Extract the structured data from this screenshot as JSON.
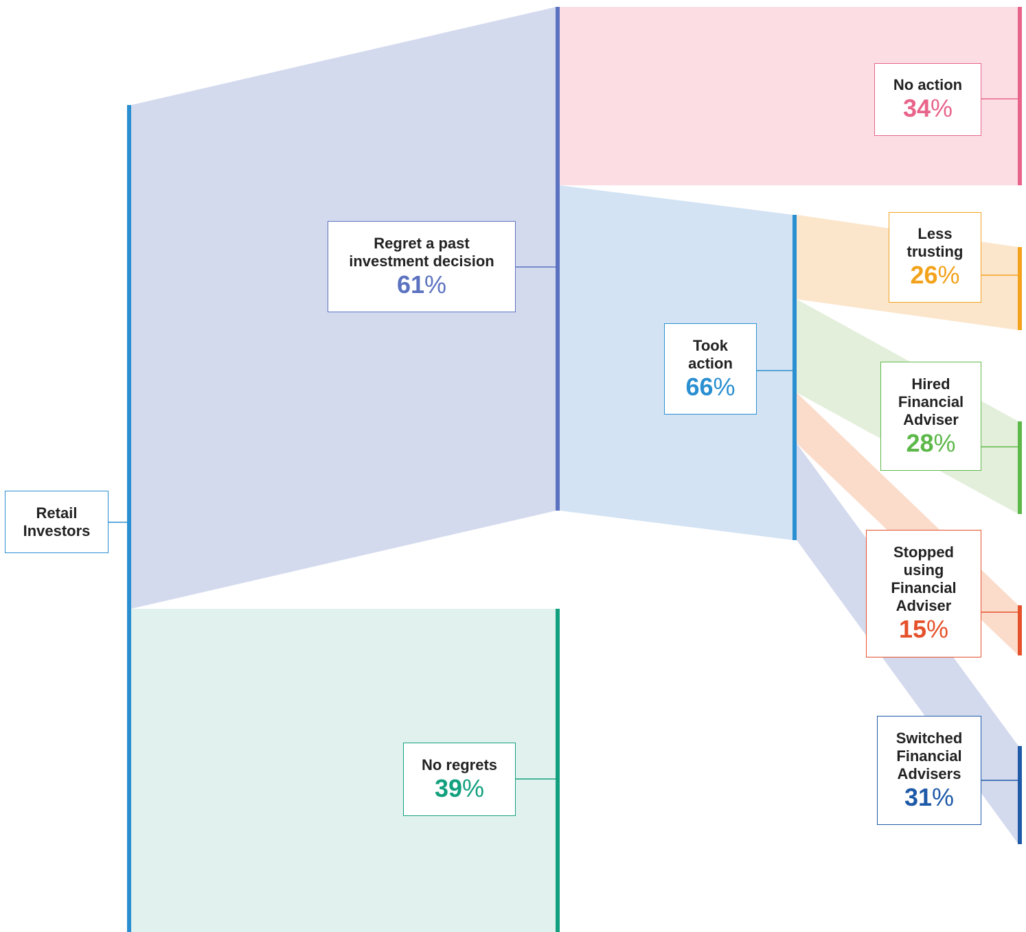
{
  "nodes": [
    {
      "label": [
        "Retail",
        "Investors"
      ]
    },
    {
      "label": [
        "Regret a past",
        "investment decision"
      ],
      "value": 61,
      "unit": "%"
    },
    {
      "label": [
        "No regrets"
      ],
      "value": 39,
      "unit": "%"
    },
    {
      "label": [
        "No action"
      ],
      "value": 34,
      "unit": "%"
    },
    {
      "label": [
        "Took",
        "action"
      ],
      "value": 66,
      "unit": "%"
    },
    {
      "label": [
        "Less",
        "trusting"
      ],
      "value": 26,
      "unit": "%"
    },
    {
      "label": [
        "Hired",
        "Financial",
        "Adviser"
      ],
      "value": 28,
      "unit": "%"
    },
    {
      "label": [
        "Stopped",
        "using",
        "Financial",
        "Adviser"
      ],
      "value": 15,
      "unit": "%"
    },
    {
      "label": [
        "Switched",
        "Financial",
        "Advisers"
      ],
      "value": 31,
      "unit": "%"
    }
  ]
}
